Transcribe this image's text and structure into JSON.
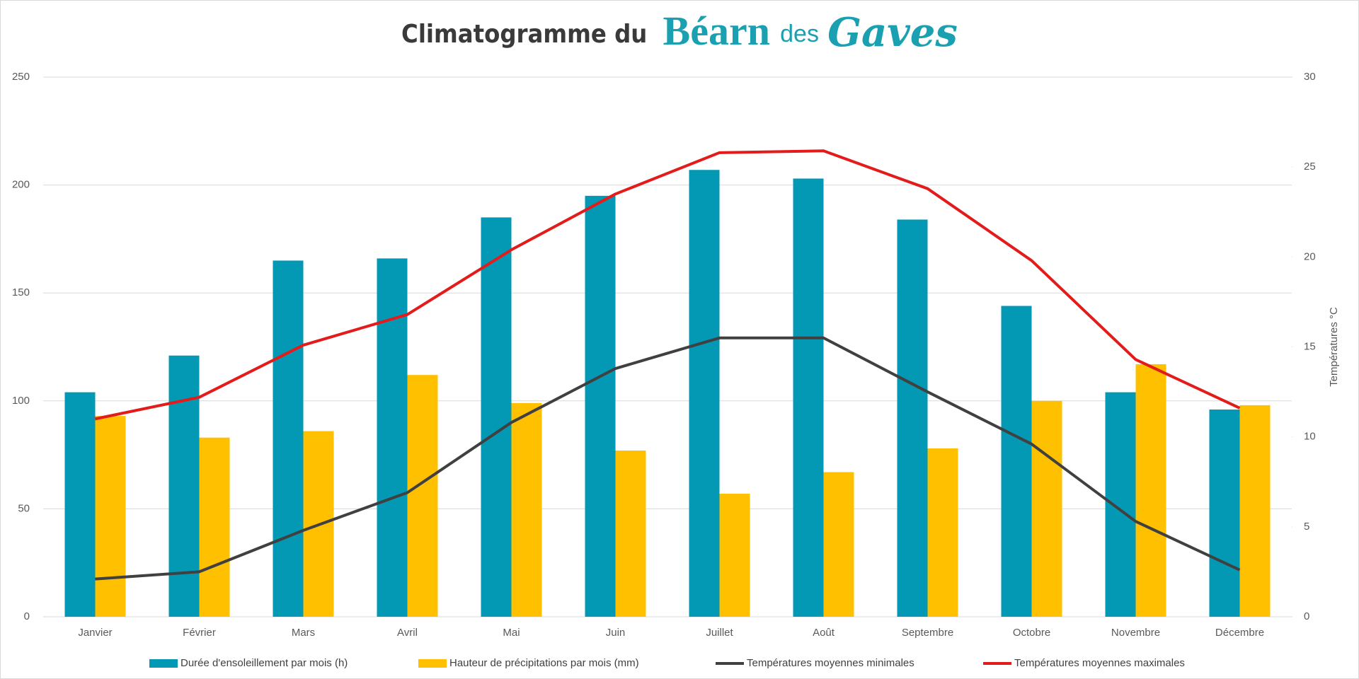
{
  "chart_data": {
    "type": "bar",
    "title": [
      "Climatogramme du",
      "Béarn",
      "des",
      "Gaves"
    ],
    "categories": [
      "Janvier",
      "Février",
      "Mars",
      "Avril",
      "Mai",
      "Juin",
      "Juillet",
      "Août",
      "Septembre",
      "Octobre",
      "Novembre",
      "Décembre"
    ],
    "series": [
      {
        "name": "Durée d'ensoleillement par mois (h)",
        "type": "bar",
        "color": "#0399b4",
        "values": [
          104,
          121,
          165,
          166,
          185,
          195,
          207,
          203,
          184,
          144,
          104,
          96
        ]
      },
      {
        "name": "Hauteur de précipitations par mois (mm)",
        "type": "bar",
        "color": "#ffc000",
        "values": [
          93,
          83,
          86,
          112,
          99,
          77,
          57,
          67,
          78,
          100,
          117,
          98
        ]
      },
      {
        "name": "Températures moyennes minimales",
        "type": "line",
        "axis": "y2",
        "color": "#404040",
        "values": [
          2.1,
          2.5,
          4.8,
          6.9,
          10.8,
          13.8,
          15.5,
          15.5,
          12.5,
          9.6,
          5.3,
          2.6
        ]
      },
      {
        "name": "Températures moyennes maximales",
        "type": "line",
        "axis": "y2",
        "color": "#e31b1b",
        "values": [
          11.0,
          12.2,
          15.1,
          16.8,
          20.4,
          23.5,
          25.8,
          25.9,
          23.8,
          19.8,
          14.3,
          11.6
        ]
      }
    ],
    "ylim": [
      0,
      250
    ],
    "yticks": [
      0,
      50,
      100,
      150,
      200,
      250
    ],
    "y2lim": [
      0,
      30
    ],
    "y2ticks": [
      0,
      5,
      10,
      15,
      20,
      25,
      30
    ],
    "y2label": "Températures °C",
    "grid": true,
    "legend": "bottom"
  }
}
